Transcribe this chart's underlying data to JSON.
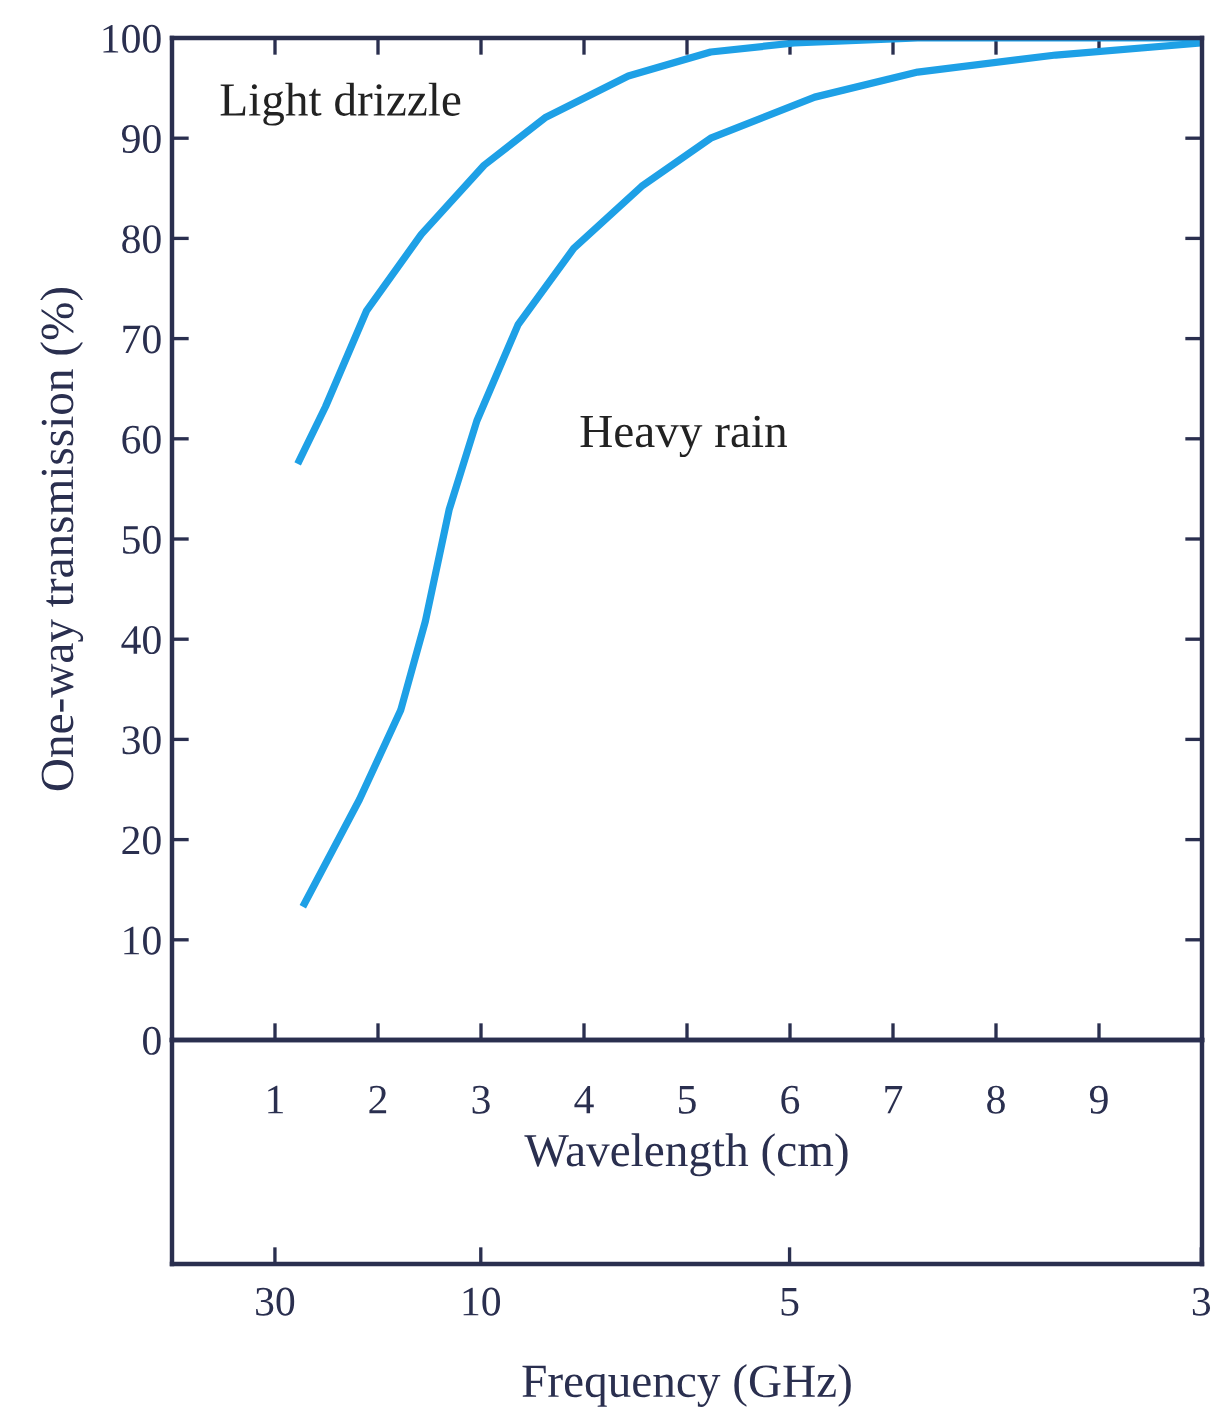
{
  "chart_data": {
    "type": "line",
    "xlabel": "Wavelength (cm)",
    "ylabel": "One-way transmission (%)",
    "xlim": [
      0,
      10
    ],
    "xticks": [
      1,
      2,
      3,
      4,
      5,
      6,
      7,
      8,
      9
    ],
    "ylim": [
      0,
      100
    ],
    "yticks": [
      0,
      10,
      20,
      30,
      40,
      50,
      60,
      70,
      80,
      90,
      100
    ],
    "x2label": "Frequency (GHz)",
    "annotations": [
      "30",
      "10",
      "5",
      "3"
    ],
    "grid": false,
    "legend": false,
    "marker": "none",
    "line_style": "solid",
    "series": [
      {
        "name": "Light drizzle",
        "color": "#1ea0e6",
        "x": [
          1.22,
          1.49,
          1.89,
          2.42,
          3.03,
          3.63,
          4.43,
          5.23,
          6.04,
          7.24,
          10
        ],
        "values": [
          57.5,
          63.2,
          72.8,
          80.4,
          87.3,
          92.1,
          96.2,
          98.6,
          99.5,
          100,
          100
        ]
      },
      {
        "name": "Heavy rain",
        "color": "#1ea0e6",
        "x": [
          1.27,
          1.82,
          2.22,
          2.46,
          2.69,
          2.96,
          3.36,
          3.9,
          4.56,
          5.23,
          6.24,
          7.24,
          8.58,
          9.99
        ],
        "values": [
          13.3,
          24.0,
          32.9,
          41.8,
          52.9,
          61.8,
          71.4,
          79.0,
          85.2,
          90.0,
          94.1,
          96.6,
          98.3,
          99.5
        ]
      }
    ]
  }
}
